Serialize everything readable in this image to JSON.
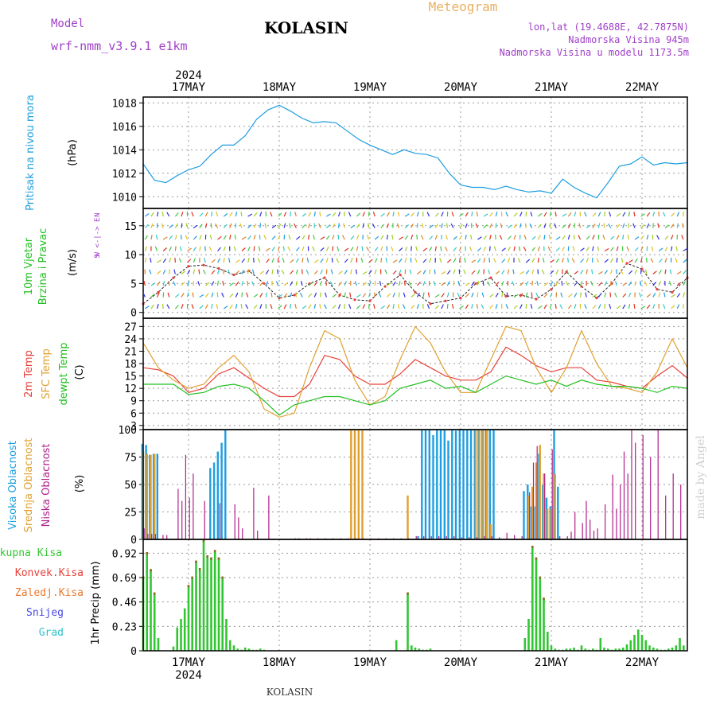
{
  "header": {
    "model_label": "Model",
    "model_name": "wrf-nmm_v3.9.1 e1km",
    "station": "KOLASIN",
    "meteogram": "Meteogram",
    "lonlat": "lon,lat (19.4688E, 42.7875N)",
    "altitude": "Nadmorska Visina 945m",
    "model_altitude": "Nadmorska Visina u modelu 1173.5m",
    "footer_station": "KOLASIN",
    "watermark": "made by Angel"
  },
  "colors": {
    "pressure": "#1e9ee0",
    "temp2m": "#e8403a",
    "sfc_temp": "#e0a030",
    "dewpoint": "#22c022",
    "cloud_high": "#1e9ee0",
    "cloud_mid": "#e0a030",
    "cloud_low": "#b0208c",
    "precip_total": "#33c633",
    "precip_conv": "#e8403a",
    "model_purple": "#a040c8",
    "brand_orange": "#e8b060"
  },
  "panel_labels": {
    "pressure": [
      "Pritisak na nivou mora",
      "(hPa)"
    ],
    "wind": [
      "10m Vjetar",
      "Brzina i Pravac",
      "(m/s)"
    ],
    "wind_compass": [
      "N",
      "W <-|-> E",
      "S"
    ],
    "temp": [
      "2m Temp",
      "SFC Temp",
      "dewpt Temp",
      "(C)"
    ],
    "cloud": [
      "Visoka Oblacnost",
      "Srednja Oblacnost",
      "Niska Oblacnost",
      "(%)"
    ],
    "precip_axis": "1hr Precip (mm)",
    "precip_legend": [
      "Ukupna Kisa",
      "Konvek.Kisa",
      "Zaledj.Kisa",
      "Snijeg",
      "Grad"
    ]
  },
  "chart_data": [
    {
      "type": "line",
      "name": "pressure",
      "x_unit": "hours from 2024-05-16 12:00",
      "x_range": [
        0,
        144
      ],
      "ylim": [
        1009,
        1018.5
      ],
      "yticks": [
        1010,
        1012,
        1014,
        1016,
        1018
      ],
      "grid": true,
      "series": [
        {
          "name": "Pritisak na nivou mora",
          "x": [
            0,
            3,
            6,
            9,
            12,
            15,
            18,
            21,
            24,
            27,
            30,
            33,
            36,
            39,
            42,
            45,
            48,
            51,
            54,
            57,
            60,
            63,
            66,
            69,
            72,
            75,
            78,
            81,
            84,
            87,
            90,
            93,
            96,
            99,
            102,
            105,
            108,
            111,
            114,
            117,
            120,
            123,
            126,
            129,
            132,
            135,
            138,
            141,
            144
          ],
          "values": [
            1012.8,
            1011.4,
            1011.2,
            1011.8,
            1012.3,
            1012.6,
            1013.6,
            1014.4,
            1014.4,
            1015.2,
            1016.6,
            1017.4,
            1017.8,
            1017.3,
            1016.7,
            1016.3,
            1016.4,
            1016.3,
            1015.6,
            1014.9,
            1014.4,
            1014.0,
            1013.6,
            1014.0,
            1013.7,
            1013.6,
            1013.3,
            1012.0,
            1011.0,
            1010.8,
            1010.8,
            1010.6,
            1010.9,
            1010.6,
            1010.4,
            1010.5,
            1010.3,
            1011.5,
            1010.8,
            1010.3,
            1009.9,
            1011.2,
            1012.6,
            1012.8,
            1013.4,
            1012.7,
            1012.9,
            1012.8,
            1012.9
          ]
        }
      ]
    },
    {
      "type": "line",
      "name": "wind",
      "x_range": [
        0,
        144
      ],
      "ylim": [
        -1,
        18
      ],
      "yticks": [
        0,
        5,
        10,
        15
      ],
      "grid": true,
      "series": [
        {
          "name": "10m Vjetar",
          "x": [
            0,
            4,
            8,
            12,
            16,
            20,
            24,
            28,
            32,
            36,
            40,
            44,
            48,
            52,
            56,
            60,
            64,
            68,
            72,
            76,
            80,
            84,
            88,
            92,
            96,
            100,
            104,
            108,
            112,
            116,
            120,
            124,
            128,
            132,
            136,
            140,
            144
          ],
          "values": [
            1.5,
            3.5,
            6,
            8,
            8.2,
            7.6,
            6.5,
            7.2,
            5,
            2.5,
            3,
            5,
            6,
            3,
            2.2,
            2,
            4.5,
            6.5,
            3.5,
            1.5,
            2,
            2.5,
            5,
            6,
            2.8,
            3,
            2.3,
            4,
            7,
            4.5,
            2.5,
            5,
            8.5,
            7.5,
            4,
            3.5,
            6
          ]
        }
      ]
    },
    {
      "type": "line",
      "name": "temperature",
      "x_range": [
        0,
        144
      ],
      "ylim": [
        2,
        29
      ],
      "yticks": [
        3,
        6,
        9,
        12,
        15,
        18,
        21,
        24,
        27
      ],
      "grid": true,
      "series": [
        {
          "name": "2m Temp",
          "x": [
            0,
            4,
            8,
            12,
            16,
            20,
            24,
            28,
            32,
            36,
            40,
            44,
            48,
            52,
            56,
            60,
            64,
            68,
            72,
            76,
            80,
            84,
            88,
            92,
            96,
            100,
            104,
            108,
            112,
            116,
            120,
            124,
            128,
            132,
            136,
            140,
            144
          ],
          "values": [
            17,
            16.5,
            15,
            11,
            12,
            15.5,
            17,
            14.5,
            12,
            10,
            10,
            13,
            20,
            19,
            15,
            13,
            13,
            15.5,
            19,
            17,
            15,
            14,
            14,
            16,
            22,
            20,
            17.5,
            16,
            17,
            17,
            14,
            13.5,
            12.5,
            12,
            15,
            17.5,
            14.5
          ]
        },
        {
          "name": "SFC Temp",
          "x": [
            0,
            4,
            8,
            12,
            16,
            20,
            24,
            28,
            32,
            36,
            40,
            44,
            48,
            52,
            56,
            60,
            64,
            68,
            72,
            76,
            80,
            84,
            88,
            92,
            96,
            100,
            104,
            108,
            112,
            116,
            120,
            124,
            128,
            132,
            136,
            140,
            144
          ],
          "values": [
            23,
            17,
            14,
            12,
            13,
            17,
            20,
            16,
            7,
            5,
            6,
            17,
            26,
            24,
            14,
            8,
            10,
            19,
            27,
            23,
            16,
            11,
            11,
            19,
            27,
            26,
            17,
            11,
            17,
            26,
            18,
            12.5,
            12,
            11,
            16,
            24,
            17
          ]
        },
        {
          "name": "dewpt Temp",
          "x": [
            0,
            4,
            8,
            12,
            16,
            20,
            24,
            28,
            32,
            36,
            40,
            44,
            48,
            52,
            56,
            60,
            64,
            68,
            72,
            76,
            80,
            84,
            88,
            92,
            96,
            100,
            104,
            108,
            112,
            116,
            120,
            124,
            128,
            132,
            136,
            140,
            144
          ],
          "values": [
            13,
            13,
            13,
            10.5,
            11,
            12.5,
            13,
            12,
            9,
            5.5,
            8,
            9,
            10,
            10,
            9,
            8,
            9,
            12,
            13,
            14,
            12,
            12.5,
            11,
            13,
            15,
            14,
            13,
            14,
            12.5,
            14,
            13,
            12.5,
            12.5,
            12,
            11,
            12.5,
            12
          ]
        }
      ]
    },
    {
      "type": "bar",
      "name": "cloud_cover",
      "x_range": [
        0,
        144
      ],
      "ylim": [
        0,
        100
      ],
      "yticks": [
        0,
        25,
        50,
        75,
        100
      ],
      "grid": true,
      "series": [
        {
          "name": "Visoka Oblacnost",
          "x": [
            0,
            1,
            2,
            3,
            4,
            18,
            19,
            20,
            21,
            22,
            73,
            74,
            75,
            76,
            77,
            78,
            79,
            80,
            81,
            82,
            83,
            84,
            85,
            86,
            87,
            88,
            89,
            90,
            91,
            92,
            93,
            101,
            102,
            103,
            104,
            105,
            106,
            107,
            108,
            109,
            110
          ],
          "values": [
            87,
            86,
            77,
            78,
            78,
            65,
            70,
            80,
            88,
            100,
            3,
            100,
            100,
            100,
            95,
            100,
            100,
            100,
            90,
            100,
            99,
            100,
            100,
            100,
            100,
            100,
            100,
            100,
            100,
            100,
            100,
            44,
            50,
            30,
            30,
            78,
            50,
            38,
            30,
            100,
            48
          ]
        },
        {
          "name": "Srednja Oblacnost",
          "x": [
            0,
            1,
            2,
            3,
            55,
            56,
            57,
            58,
            70,
            88,
            89,
            90,
            91,
            92,
            102,
            103,
            104,
            105,
            106,
            107,
            108,
            109
          ],
          "values": [
            80,
            78,
            77,
            78,
            100,
            100,
            100,
            100,
            40,
            100,
            100,
            100,
            100,
            14,
            40,
            48,
            70,
            86,
            60,
            28,
            28,
            60
          ]
        },
        {
          "name": "Niska Oblacnost",
          "x": [
            0,
            1,
            2,
            3,
            5,
            6,
            9,
            10,
            11,
            12,
            13,
            16,
            20,
            24,
            25,
            26,
            29,
            30,
            33,
            40,
            41,
            43,
            44,
            46,
            48,
            50,
            52,
            54,
            56,
            58,
            60,
            62,
            64,
            66,
            68,
            70,
            72,
            74,
            76,
            78,
            80,
            82,
            84,
            86,
            88,
            90,
            92,
            94,
            96,
            98,
            100,
            102,
            103,
            104,
            106,
            108,
            110,
            112,
            113,
            114,
            116,
            117,
            118,
            119,
            120,
            122,
            124,
            125,
            126,
            127,
            128,
            129,
            130,
            132,
            134,
            136,
            138,
            140,
            142
          ],
          "values": [
            10,
            5,
            5,
            5,
            4,
            4,
            46,
            35,
            77,
            38,
            60,
            35,
            33,
            32,
            20,
            10,
            47,
            8,
            40,
            1,
            1,
            1,
            1,
            1,
            1,
            1,
            1,
            1,
            1,
            1,
            1,
            1,
            1,
            1,
            1,
            1,
            3,
            3,
            3,
            3,
            3,
            3,
            2,
            2,
            2,
            3,
            3,
            2,
            6,
            4,
            3,
            43,
            70,
            85,
            60,
            82,
            3,
            3,
            7,
            25,
            15,
            35,
            18,
            8,
            10,
            32,
            59,
            28,
            50,
            80,
            60,
            100,
            88,
            95,
            75,
            100,
            40,
            60,
            50
          ]
        }
      ]
    },
    {
      "type": "bar",
      "name": "precipitation",
      "x_range": [
        0,
        144
      ],
      "ylim": [
        0,
        1.05
      ],
      "yticks": [
        0,
        0.23,
        0.46,
        0.69,
        0.92
      ],
      "grid": true,
      "series": [
        {
          "name": "Ukupna Kisa",
          "x": [
            0,
            1,
            2,
            3,
            4,
            8,
            9,
            10,
            11,
            12,
            13,
            14,
            15,
            16,
            17,
            18,
            19,
            20,
            21,
            22,
            23,
            24,
            25,
            26,
            27,
            28,
            29,
            30,
            31,
            32,
            67,
            70,
            71,
            72,
            73,
            74,
            75,
            76,
            101,
            102,
            103,
            104,
            105,
            106,
            107,
            108,
            109,
            110,
            111,
            112,
            113,
            114,
            115,
            116,
            117,
            118,
            119,
            120,
            121,
            122,
            123,
            124,
            125,
            126,
            127,
            128,
            129,
            130,
            131,
            132,
            133,
            134,
            135,
            136,
            137,
            138,
            139,
            140,
            141,
            142,
            143
          ],
          "values": [
            0.7,
            0.93,
            0.77,
            0.55,
            0.12,
            0.04,
            0.22,
            0.3,
            0.4,
            0.62,
            0.7,
            0.85,
            0.78,
            1.05,
            0.9,
            0.88,
            0.95,
            0.88,
            0.7,
            0.3,
            0.1,
            0.05,
            0.02,
            0.01,
            0.03,
            0.02,
            0.01,
            0.01,
            0.02,
            0.01,
            0.1,
            0.55,
            0.05,
            0.03,
            0.02,
            0.01,
            0.01,
            0.02,
            0.12,
            0.3,
            0.99,
            0.88,
            0.7,
            0.5,
            0.18,
            0.05,
            0.02,
            0.01,
            0.01,
            0.02,
            0.02,
            0.03,
            0.01,
            0.05,
            0.02,
            0.01,
            0.02,
            0.01,
            0.12,
            0.03,
            0.02,
            0.01,
            0.02,
            0.02,
            0.03,
            0.06,
            0.1,
            0.15,
            0.2,
            0.15,
            0.1,
            0.05,
            0.03,
            0.02,
            0.01,
            0.01,
            0.02,
            0.03,
            0.05,
            0.12,
            0.05
          ]
        }
      ]
    }
  ],
  "x_axis": {
    "year": "2024",
    "day_labels": [
      "17MAY",
      "18MAY",
      "19MAY",
      "20MAY",
      "21MAY",
      "22MAY"
    ],
    "day_hours": [
      12,
      36,
      60,
      84,
      108,
      132
    ]
  }
}
